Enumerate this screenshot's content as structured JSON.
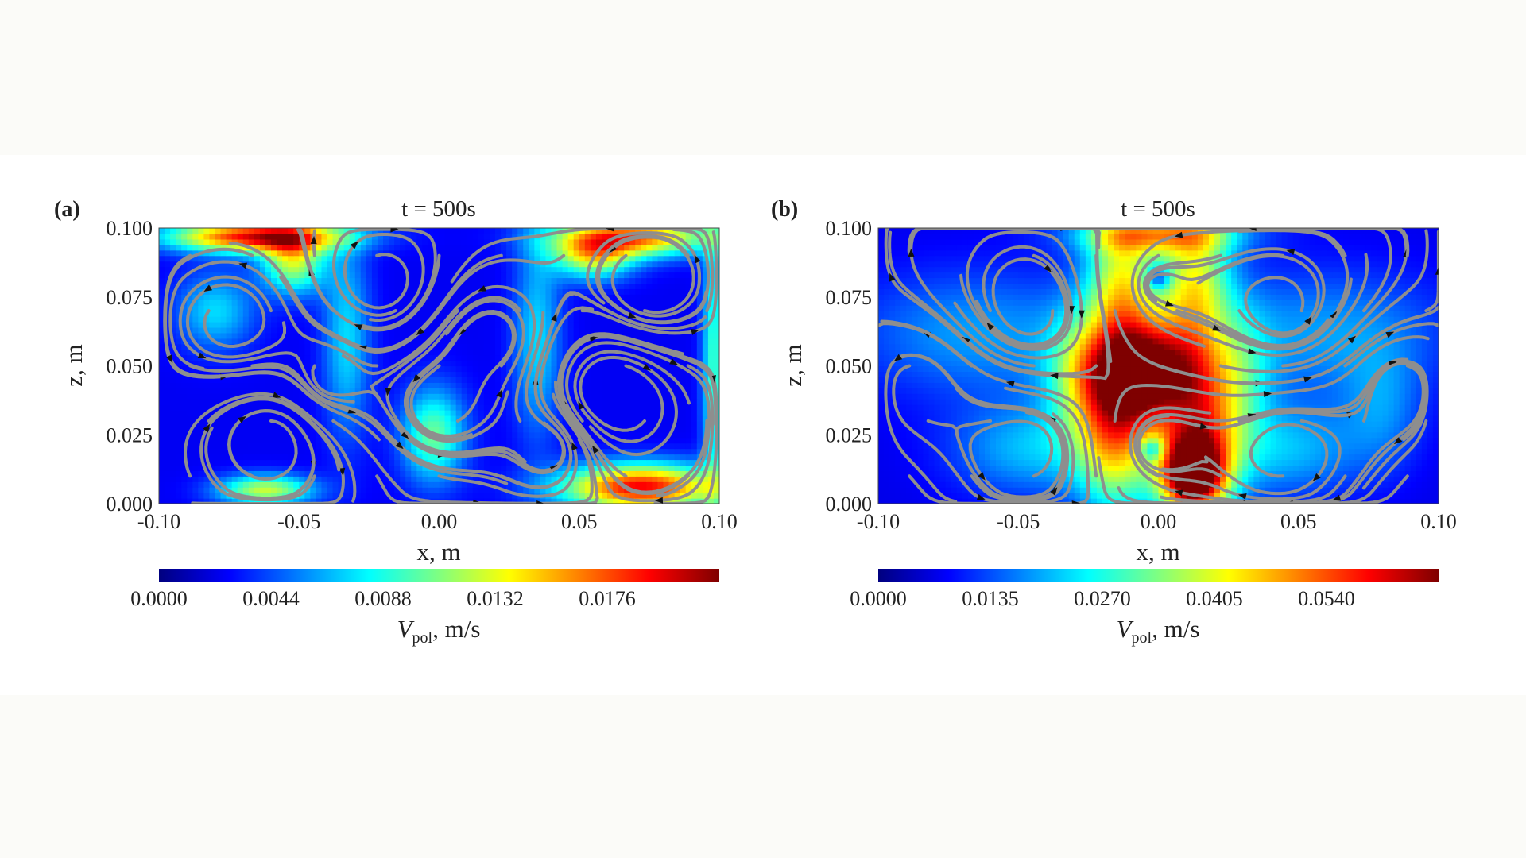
{
  "chart_data": [
    {
      "panel_label": "(a)",
      "type": "heatmap",
      "title": "t = 500s",
      "xlabel": "x, m",
      "ylabel": "z, m",
      "xlim": [
        -0.1,
        0.1
      ],
      "ylim": [
        0.0,
        0.1
      ],
      "x_ticks": [
        "-0.10",
        "-0.05",
        "0.00",
        "0.05",
        "0.10"
      ],
      "y_ticks": [
        "0.000",
        "0.025",
        "0.050",
        "0.075",
        "0.100"
      ],
      "colorbar": {
        "label_main": "V",
        "label_sub": "pol",
        "label_unit": ", m/s",
        "range": [
          0.0,
          0.022
        ],
        "ticks": [
          "0.0000",
          "0.0044",
          "0.0088",
          "0.0132",
          "0.0176"
        ]
      },
      "colormap": [
        "#00007f",
        "#0000ff",
        "#0080ff",
        "#00ffff",
        "#80ff80",
        "#ffff00",
        "#ff8000",
        "#ff0000",
        "#7f0000"
      ],
      "field_background": 0.0025,
      "hotspots": [
        {
          "x": -0.065,
          "z": 0.097,
          "sx": 0.022,
          "sz": 0.004,
          "v": 0.017
        },
        {
          "x": -0.052,
          "z": 0.088,
          "sx": 0.008,
          "sz": 0.008,
          "v": 0.01
        },
        {
          "x": 0.07,
          "z": 0.097,
          "sx": 0.02,
          "sz": 0.005,
          "v": 0.014
        },
        {
          "x": 0.055,
          "z": 0.09,
          "sx": 0.01,
          "sz": 0.006,
          "v": 0.01
        },
        {
          "x": 0.072,
          "z": 0.006,
          "sx": 0.02,
          "sz": 0.006,
          "v": 0.017
        },
        {
          "x": -0.062,
          "z": 0.005,
          "sx": 0.012,
          "sz": 0.004,
          "v": 0.01
        },
        {
          "x": -0.002,
          "z": 0.025,
          "sx": 0.008,
          "sz": 0.012,
          "v": 0.008
        },
        {
          "x": 0.098,
          "z": 0.05,
          "sx": 0.003,
          "sz": 0.04,
          "v": 0.007
        },
        {
          "x": -0.033,
          "z": 0.06,
          "sx": 0.006,
          "sz": 0.025,
          "v": 0.005
        },
        {
          "x": 0.035,
          "z": 0.06,
          "sx": 0.006,
          "sz": 0.025,
          "v": 0.005
        },
        {
          "x": -0.08,
          "z": 0.07,
          "sx": 0.01,
          "sz": 0.01,
          "v": 0.005
        }
      ],
      "vortices": [
        {
          "x": -0.075,
          "z": 0.065,
          "r": 0.012,
          "dir": 1
        },
        {
          "x": -0.02,
          "z": 0.08,
          "r": 0.01,
          "dir": -1
        },
        {
          "x": 0.02,
          "z": 0.06,
          "r": 0.012,
          "dir": 1
        },
        {
          "x": -0.06,
          "z": 0.025,
          "r": 0.013,
          "dir": -1
        },
        {
          "x": 0.0,
          "z": 0.035,
          "r": 0.01,
          "dir": 1
        },
        {
          "x": 0.06,
          "z": 0.04,
          "r": 0.014,
          "dir": -1
        },
        {
          "x": 0.075,
          "z": 0.078,
          "r": 0.012,
          "dir": 1
        },
        {
          "x": -0.04,
          "z": 0.045,
          "r": 0.01,
          "dir": 1
        },
        {
          "x": 0.04,
          "z": 0.02,
          "r": 0.01,
          "dir": 1
        }
      ]
    },
    {
      "panel_label": "(b)",
      "type": "heatmap",
      "title": "t = 500s",
      "xlabel": "x, m",
      "ylabel": "z, m",
      "xlim": [
        -0.1,
        0.1
      ],
      "ylim": [
        0.0,
        0.1
      ],
      "x_ticks": [
        "-0.10",
        "-0.05",
        "0.00",
        "0.05",
        "0.10"
      ],
      "y_ticks": [
        "0.000",
        "0.025",
        "0.050",
        "0.075",
        "0.100"
      ],
      "colorbar": {
        "label_main": "V",
        "label_sub": "pol",
        "label_unit": ", m/s",
        "range": [
          0.0,
          0.0675
        ],
        "ticks": [
          "0.0000",
          "0.0135",
          "0.0270",
          "0.0405",
          "0.0540"
        ]
      },
      "colormap": [
        "#00007f",
        "#0000ff",
        "#0080ff",
        "#00ffff",
        "#80ff80",
        "#ffff00",
        "#ff8000",
        "#ff0000",
        "#7f0000"
      ],
      "field_background": 0.007,
      "hotspots": [
        {
          "x": -0.005,
          "z": 0.048,
          "sx": 0.016,
          "sz": 0.013,
          "v": 0.058
        },
        {
          "x": 0.012,
          "z": 0.01,
          "sx": 0.008,
          "sz": 0.01,
          "v": 0.055
        },
        {
          "x": -0.015,
          "z": 0.025,
          "sx": 0.01,
          "sz": 0.02,
          "v": 0.035
        },
        {
          "x": 0.015,
          "z": 0.025,
          "sx": 0.01,
          "sz": 0.018,
          "v": 0.035
        },
        {
          "x": -0.013,
          "z": 0.08,
          "sx": 0.009,
          "sz": 0.018,
          "v": 0.032
        },
        {
          "x": 0.013,
          "z": 0.08,
          "sx": 0.009,
          "sz": 0.018,
          "v": 0.032
        },
        {
          "x": 0.0,
          "z": 0.098,
          "sx": 0.02,
          "sz": 0.005,
          "v": 0.03
        },
        {
          "x": 0.0,
          "z": 0.082,
          "sx": 0.003,
          "sz": 0.003,
          "v": -0.018
        },
        {
          "x": -0.002,
          "z": 0.02,
          "sx": 0.003,
          "sz": 0.003,
          "v": -0.018
        },
        {
          "x": -0.065,
          "z": 0.062,
          "sx": 0.03,
          "sz": 0.016,
          "v": 0.012
        },
        {
          "x": 0.06,
          "z": 0.062,
          "sx": 0.03,
          "sz": 0.016,
          "v": 0.012
        },
        {
          "x": -0.045,
          "z": 0.02,
          "sx": 0.02,
          "sz": 0.012,
          "v": 0.014
        },
        {
          "x": 0.045,
          "z": 0.02,
          "sx": 0.02,
          "sz": 0.012,
          "v": 0.014
        },
        {
          "x": 0.03,
          "z": 0.048,
          "sx": 0.008,
          "sz": 0.018,
          "v": 0.012
        },
        {
          "x": -0.03,
          "z": 0.048,
          "sx": 0.008,
          "sz": 0.018,
          "v": 0.01
        },
        {
          "x": 0.08,
          "z": 0.035,
          "sx": 0.01,
          "sz": 0.015,
          "v": 0.009
        }
      ],
      "vortices": [
        {
          "x": -0.002,
          "z": 0.08,
          "r": 0.012,
          "dir": 1
        },
        {
          "x": -0.002,
          "z": 0.02,
          "r": 0.012,
          "dir": -1
        },
        {
          "x": -0.045,
          "z": 0.068,
          "r": 0.02,
          "dir": -1
        },
        {
          "x": 0.045,
          "z": 0.068,
          "r": 0.02,
          "dir": 1
        },
        {
          "x": -0.045,
          "z": 0.022,
          "r": 0.018,
          "dir": 1
        },
        {
          "x": 0.045,
          "z": 0.022,
          "r": 0.018,
          "dir": -1
        },
        {
          "x": -0.085,
          "z": 0.045,
          "r": 0.012,
          "dir": 1
        },
        {
          "x": 0.085,
          "z": 0.045,
          "r": 0.012,
          "dir": -1
        }
      ]
    }
  ]
}
